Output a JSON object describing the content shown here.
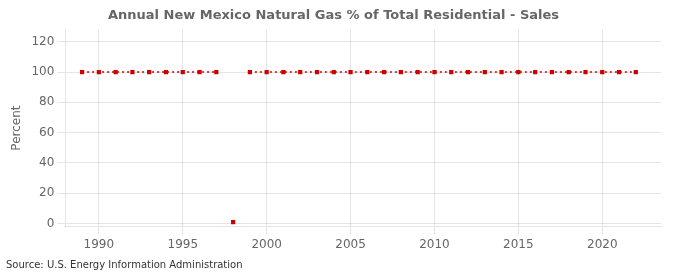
{
  "chart_data": {
    "type": "line",
    "title": "Annual New Mexico Natural Gas % of Total Residential - Sales",
    "ylabel": "Percent",
    "source": "Source: U.S. Energy Information Administration",
    "x": [
      1989,
      1990,
      1991,
      1992,
      1993,
      1994,
      1995,
      1996,
      1997,
      1998,
      1999,
      2000,
      2001,
      2002,
      2003,
      2004,
      2005,
      2006,
      2007,
      2008,
      2009,
      2010,
      2011,
      2012,
      2013,
      2014,
      2015,
      2016,
      2017,
      2018,
      2019,
      2020,
      2021,
      2022
    ],
    "series": [
      {
        "type": "line",
        "color": "#cc0000",
        "marker": "square",
        "line_style": "dotted",
        "values": [
          100,
          100,
          100,
          100,
          100,
          100,
          100,
          100,
          100,
          null,
          100,
          100,
          100,
          100,
          100,
          100,
          100,
          100,
          100,
          100,
          100,
          100,
          100,
          100,
          100,
          100,
          100,
          100,
          100,
          100,
          100,
          100,
          100,
          100
        ]
      },
      {
        "type": "scatter",
        "color": "#cc0000",
        "marker": "square",
        "values": [
          null,
          null,
          null,
          null,
          null,
          null,
          null,
          null,
          null,
          1,
          null,
          null,
          null,
          null,
          null,
          null,
          null,
          null,
          null,
          null,
          null,
          null,
          null,
          null,
          null,
          null,
          null,
          null,
          null,
          null,
          null,
          null,
          null,
          null
        ]
      }
    ],
    "xlim": [
      1988.0,
      2023.5
    ],
    "xticks": [
      1990,
      1995,
      2000,
      2005,
      2010,
      2015,
      2020
    ],
    "ylim": [
      -2,
      128
    ],
    "yticks": [
      0,
      20,
      40,
      60,
      80,
      100,
      120
    ],
    "grid": true
  }
}
